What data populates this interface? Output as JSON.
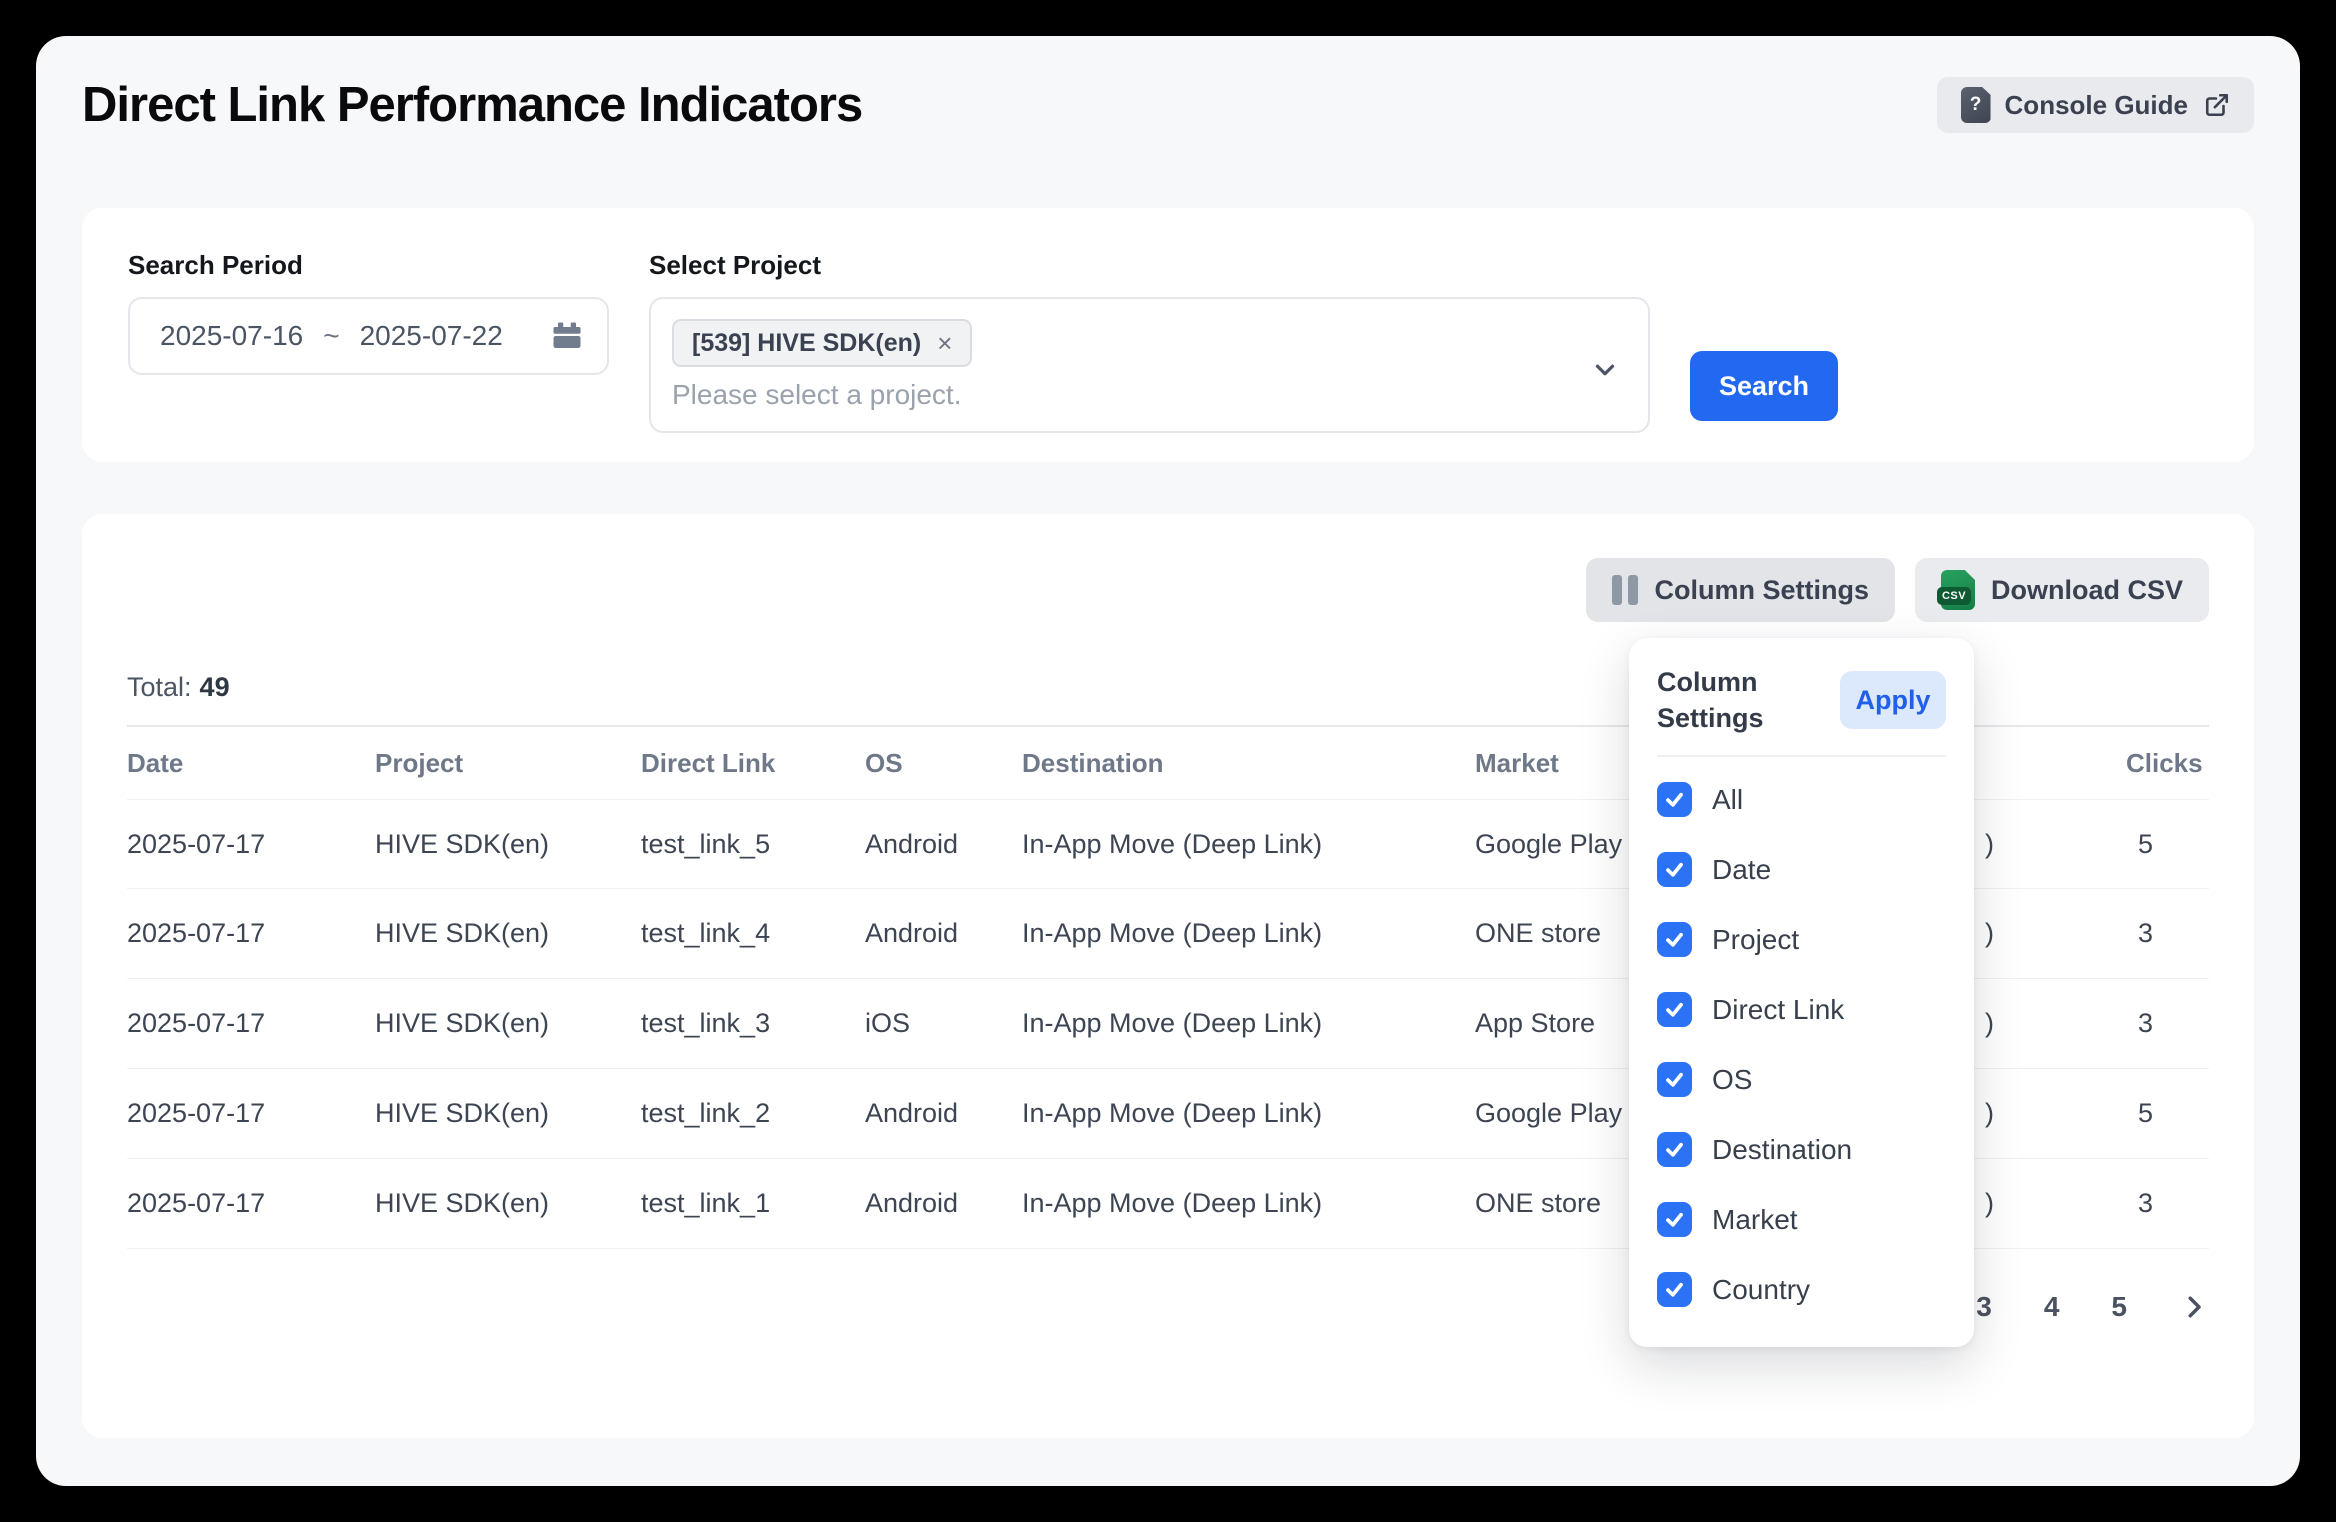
{
  "page": {
    "title": "Direct Link Performance Indicators"
  },
  "header": {
    "console_guide_label": "Console Guide"
  },
  "filters": {
    "search_period": {
      "label": "Search Period",
      "start": "2025-07-16",
      "separator": "~",
      "end": "2025-07-22"
    },
    "select_project": {
      "label": "Select Project",
      "chip": "[539] HIVE SDK(en)",
      "chip_remove": "×",
      "placeholder": "Please select a project."
    },
    "search_button": "Search"
  },
  "toolbar": {
    "column_settings": "Column Settings",
    "download_csv": "Download CSV",
    "csv_badge": "CSV"
  },
  "summary": {
    "total_label": "Total:",
    "total_value": "49"
  },
  "table": {
    "columns": [
      "Date",
      "Project",
      "Direct Link",
      "OS",
      "Destination",
      "Market",
      "",
      "Clicks"
    ],
    "rows": [
      {
        "date": "2025-07-17",
        "project": "HIVE SDK(en)",
        "direct_link": "test_link_5",
        "os": "Android",
        "destination": "In-App Move (Deep Link)",
        "market": "Google Play",
        "country_visible": ")",
        "clicks": "5"
      },
      {
        "date": "2025-07-17",
        "project": "HIVE SDK(en)",
        "direct_link": "test_link_4",
        "os": "Android",
        "destination": "In-App Move (Deep Link)",
        "market": "ONE store",
        "country_visible": ")",
        "clicks": "3"
      },
      {
        "date": "2025-07-17",
        "project": "HIVE SDK(en)",
        "direct_link": "test_link_3",
        "os": "iOS",
        "destination": "In-App Move (Deep Link)",
        "market": "App Store",
        "country_visible": ")",
        "clicks": "3"
      },
      {
        "date": "2025-07-17",
        "project": "HIVE SDK(en)",
        "direct_link": "test_link_2",
        "os": "Android",
        "destination": "In-App Move (Deep Link)",
        "market": "Google Play",
        "country_visible": ")",
        "clicks": "5"
      },
      {
        "date": "2025-07-17",
        "project": "HIVE SDK(en)",
        "direct_link": "test_link_1",
        "os": "Android",
        "destination": "In-App Move (Deep Link)",
        "market": "ONE store",
        "country_visible": ")",
        "clicks": "3"
      }
    ]
  },
  "column_settings_panel": {
    "title": "Column Settings",
    "apply_label": "Apply",
    "options": [
      {
        "label": "All",
        "checked": true
      },
      {
        "label": "Date",
        "checked": true
      },
      {
        "label": "Project",
        "checked": true
      },
      {
        "label": "Direct Link",
        "checked": true
      },
      {
        "label": "OS",
        "checked": true
      },
      {
        "label": "Destination",
        "checked": true
      },
      {
        "label": "Market",
        "checked": true
      },
      {
        "label": "Country",
        "checked": true
      }
    ]
  },
  "pagination": {
    "pages": [
      "3",
      "4",
      "5"
    ]
  },
  "colors": {
    "primary_blue": "#2368f0",
    "checkbox_blue": "#2b72f4",
    "apply_bg": "#dce9fd",
    "apply_text": "#2060ea",
    "csv_green": "#157c45",
    "page_bg": "#f7f8f9"
  }
}
